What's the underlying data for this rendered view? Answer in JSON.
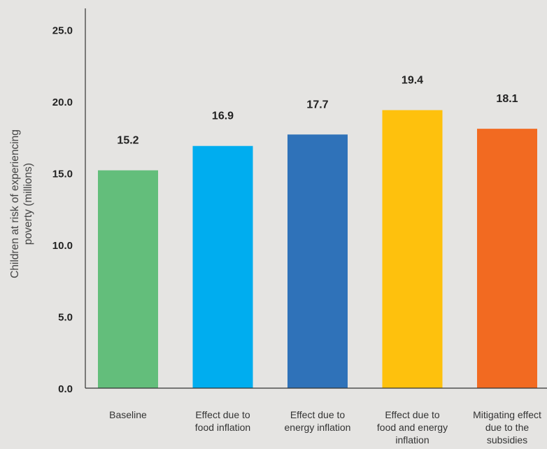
{
  "chart_data": {
    "type": "bar",
    "ylabel_lines": [
      "Children at risk of experiencing",
      "poverty (millions)"
    ],
    "ylim": [
      0,
      26.5
    ],
    "yticks": [
      "0.0",
      "5.0",
      "10.0",
      "15.0",
      "20.0",
      "25.0"
    ],
    "ytick_values": [
      0,
      5,
      10,
      15,
      20,
      25
    ],
    "categories": [
      [
        "Baseline"
      ],
      [
        "Effect due to",
        "food inflation"
      ],
      [
        "Effect due to",
        "energy inflation"
      ],
      [
        "Effect due to",
        "food and energy",
        "inflation"
      ],
      [
        "Mitigating effect",
        "due to the",
        "subsidies"
      ]
    ],
    "values": [
      15.2,
      16.9,
      17.7,
      19.4,
      18.1
    ],
    "value_labels": [
      "15.2",
      "16.9",
      "17.7",
      "19.4",
      "18.1"
    ],
    "colors": [
      "#63be7b",
      "#00adef",
      "#2f72b9",
      "#fec10d",
      "#f26a21"
    ],
    "grid": false,
    "legend": "none"
  }
}
